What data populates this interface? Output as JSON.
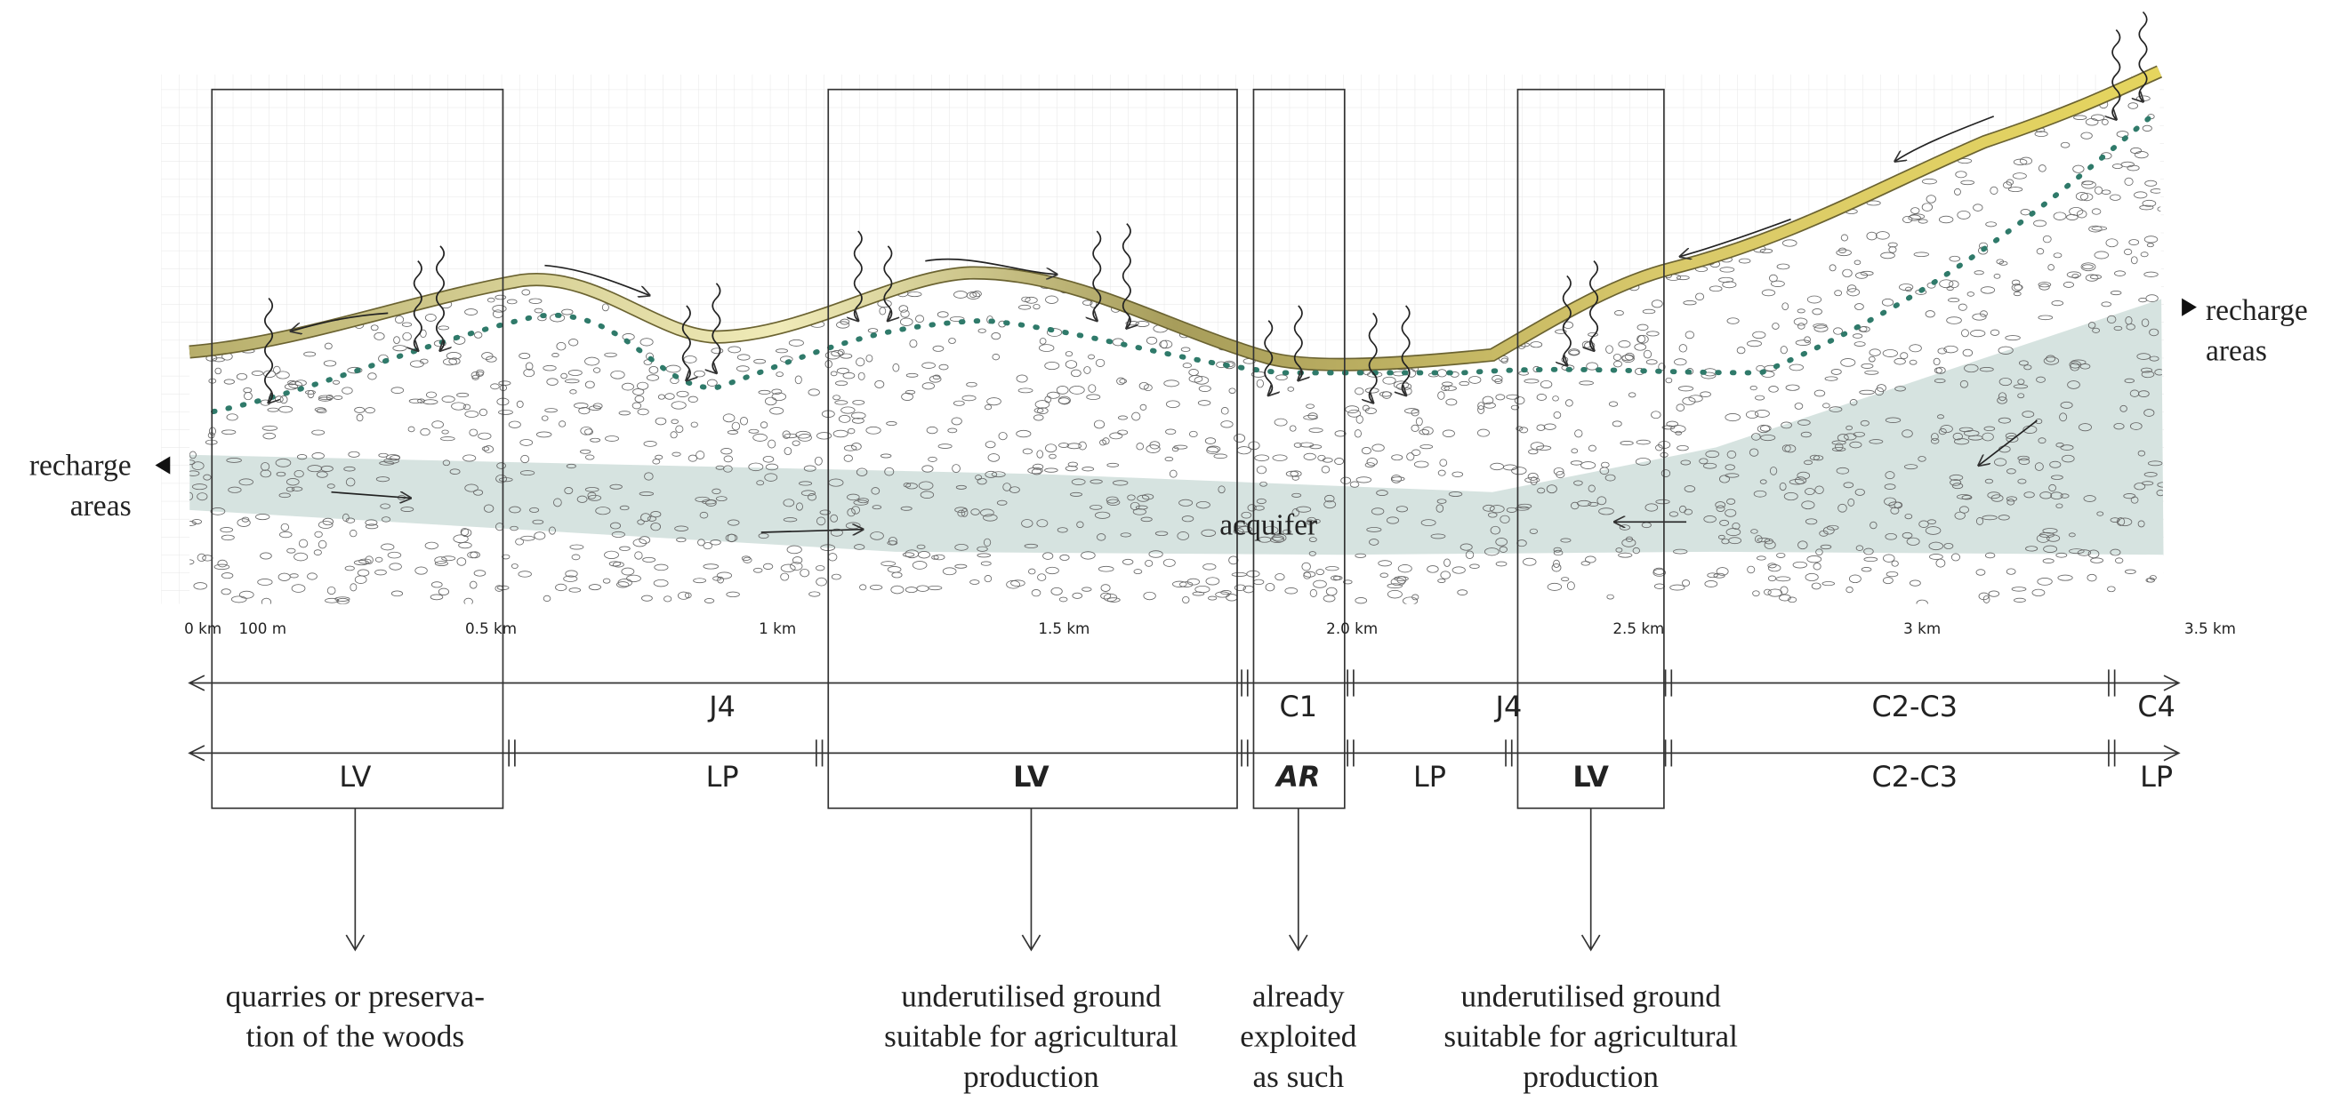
{
  "diagram": {
    "recharge_left": [
      "recharge",
      "areas"
    ],
    "recharge_right": [
      "recharge",
      "areas"
    ],
    "aquifer_label": "acquifer",
    "scale": [
      "0 km",
      "100 m",
      "0.5 km",
      "1 km",
      "1.5 km",
      "2.0 km",
      "2.5 km",
      "3 km",
      "3.5 km"
    ],
    "row1": [
      "J4",
      "C1",
      "J4",
      "C2-C3",
      "C4"
    ],
    "row2": [
      "LV",
      "LP",
      "LV",
      "AR",
      "LP",
      "LV",
      "C2-C3",
      "LP"
    ],
    "notes": [
      [
        "quarries or preserva-",
        "tion of the woods"
      ],
      [
        "underutilised ground",
        "suitable for agricultural",
        "production"
      ],
      [
        "already",
        "exploited",
        "as such"
      ],
      [
        "underutilised ground",
        "suitable for agricultural",
        "production"
      ]
    ]
  }
}
